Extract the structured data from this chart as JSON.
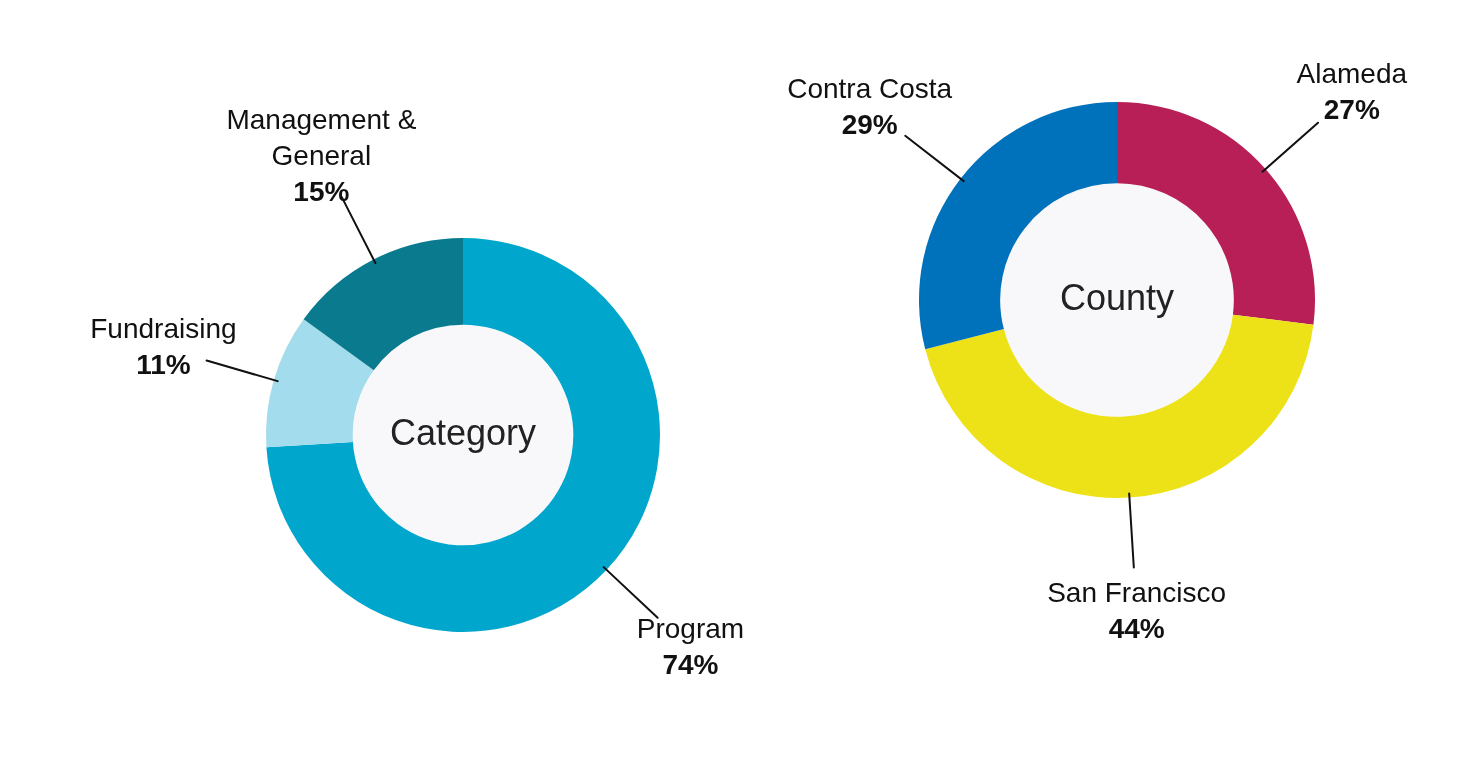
{
  "chart_data": [
    {
      "type": "donut",
      "title": "Category",
      "categories": [
        "Program",
        "Fundraising",
        "Management & General"
      ],
      "values": [
        74,
        11,
        15
      ],
      "value_labels": [
        "74%",
        "11%",
        "15%"
      ],
      "colors": [
        "#00a6cc",
        "#a3dcec",
        "#0a7b8e"
      ],
      "legend": false
    },
    {
      "type": "donut",
      "title": "County",
      "categories": [
        "Alameda",
        "San Francisco",
        "Contra Costa"
      ],
      "values": [
        27,
        44,
        29
      ],
      "value_labels": [
        "27%",
        "44%",
        "29%"
      ],
      "colors": [
        "#b81f57",
        "#ede118",
        "#0071bb"
      ],
      "legend": false
    }
  ]
}
